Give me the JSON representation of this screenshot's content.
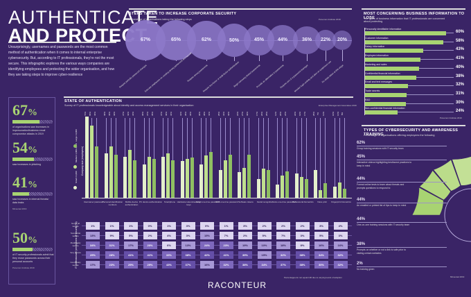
{
  "header": {
    "title_line1": "AUTHENTICATE",
    "title_line2": "AND PROTECT",
    "intro": "Unsurprisingly, usernames and passwords are the most common method of authentication when it comes to internal enterprise cybersecurity. But, according to IT professionals, they're not the most secure. This infographic explores the various ways companies are identifying employees and protecting the wider organisation, and how they are taking steps to improve cyber-resilience"
  },
  "stats": [
    {
      "value": "67",
      "unit": "%",
      "fraction": 0.67,
      "desc": "of organisations saw increases in impersonation/business email compromise attacks in 2019",
      "source": ""
    },
    {
      "value": "54",
      "unit": "%",
      "fraction": 0.54,
      "desc": "saw increases in phishing",
      "source": ""
    },
    {
      "value": "41",
      "unit": "%",
      "fraction": 0.41,
      "desc": "saw increases in internal threats/ data leaks",
      "source": "Mimecast 2019"
    },
    {
      "value": "50",
      "unit": "%",
      "fraction": 0.5,
      "desc": "of IT security professionals admit that they reuse passwords across their personal accounts",
      "source": "Ponemon Institute 2019"
    }
  ],
  "steps": {
    "title": "STEPS TAKEN TO INCREASE CORPORATE SECURITY",
    "subtitle": "Percentage of organisations taking the following steps",
    "source": "Ponemon Institute 2019",
    "items": [
      {
        "pct": "67%",
        "value": 67,
        "label": "Require periodic password changes"
      },
      {
        "pct": "65%",
        "value": 65,
        "label": "Educate employees on creating strong passwords and security"
      },
      {
        "pct": "62%",
        "value": 62,
        "label": "Require strong passwords"
      },
      {
        "pct": "50%",
        "value": 50,
        "label": "Require two-factor or multi-factor authentication"
      },
      {
        "pct": "45%",
        "value": 45,
        "label": "Begin removing shared passwords"
      },
      {
        "pct": "44%",
        "value": 44,
        "label": "Provide an alternative to passwords"
      },
      {
        "pct": "36%",
        "value": 36,
        "label": "Require use of a password manager"
      },
      {
        "pct": "22%",
        "value": 22,
        "label": "Monitor login activity and alert on suspicious use"
      },
      {
        "pct": "20%",
        "value": 20,
        "label": "No steps taken at this stage"
      }
    ]
  },
  "concerning": {
    "title": "MOST CONCERNING BUSINESS INFORMATION TO LOSE",
    "subtitle": "The types of business information that IT professionals are concerned about protecting",
    "source": "Ponemon Institute 2019",
    "items": [
      {
        "label": "Personally identifiable information",
        "pct": "60%",
        "value": 60
      },
      {
        "label": "Customer information",
        "pct": "58%",
        "value": 58
      },
      {
        "label": "Salary information",
        "pct": "43%",
        "value": 43
      },
      {
        "label": "Employee information",
        "pct": "41%",
        "value": 41
      },
      {
        "label": "Marketing and sales",
        "pct": "40%",
        "value": 40
      },
      {
        "label": "Confidential financial information",
        "pct": "38%",
        "value": 38
      },
      {
        "label": "Email and text messages",
        "pct": "32%",
        "value": 32
      },
      {
        "label": "Trade secrets",
        "pct": "31%",
        "value": 31
      },
      {
        "label": "R&D",
        "pct": "30%",
        "value": 30
      },
      {
        "label": "Non-confidential financial information",
        "pct": "24%",
        "value": 24
      }
    ]
  },
  "training": {
    "title": "TYPES OF CYBERSECURITY AND AWARENESS TRAINING",
    "subtitle": "Percentage of organisations offering employees the following",
    "source": "Mimecast 2019",
    "items": [
      {
        "pct": "62%",
        "value": 62,
        "desc": "Group training sessions with IT security team"
      },
      {
        "pct": "45%",
        "value": 45,
        "desc": "Interactive videos highlighting best/worst practices to keep in mind"
      },
      {
        "pct": "44%",
        "value": 44,
        "desc": "Formal online tests to learn about threats and prompts questions to respond to"
      },
      {
        "pct": "44%",
        "value": 44,
        "desc": "An emailed or printed list of tips to keep in mind"
      },
      {
        "pct": "44%",
        "value": 44,
        "desc": "One-on-one training sessions with IT security team"
      },
      {
        "pct": "38%",
        "value": 38,
        "desc": "Prompts on whether or not a link is safe prior to visiting certain websites"
      },
      {
        "pct": "2%",
        "value": 2,
        "desc": "No training given"
      }
    ]
  },
  "authentication": {
    "title": "STATE OF AUTHENTICATION",
    "subtitle": "Survey of IT professionals knowledgeable about identity and access management services in their organisation",
    "source": "Enterprise Management Associates 2019",
    "legend_title": "Company size (employees)",
    "legend": [
      {
        "name": "Small <1,000",
        "color": "#e4f0cc"
      },
      {
        "name": "Medium 1,000-3,000",
        "color": "#bfe08e"
      },
      {
        "name": "Large >3,000",
        "color": "#8fbf62"
      }
    ],
    "methods": [
      {
        "label": "Username/ password",
        "vals": [
          73,
          65,
          46
        ]
      },
      {
        "label": "Personal identification numbers",
        "vals": [
          40,
          46,
          39
        ]
      },
      {
        "label": "Mobile device authentication",
        "vals": [
          37,
          43,
          34
        ]
      },
      {
        "label": "PC device authentication",
        "vals": [
          30,
          37,
          35
        ]
      },
      {
        "label": "Smartphone",
        "vals": [
          37,
          40,
          34
        ]
      },
      {
        "label": "Hardware tokens/security keys",
        "vals": [
          33,
          35,
          36
        ]
      },
      {
        "label": "Email one-time password",
        "vals": [
          30,
          38,
          41
        ]
      },
      {
        "label": "SMS one-time password",
        "vals": [
          25,
          34,
          39
        ]
      },
      {
        "label": "Software tokens",
        "vals": [
          23,
          27,
          39
        ]
      },
      {
        "label": "Facial recognition",
        "vals": [
          17,
          26,
          25
        ]
      },
      {
        "label": "Voice one-time password",
        "vals": [
          12,
          20,
          24
        ]
      },
      {
        "label": "Behavioural biometrics",
        "vals": [
          22,
          19,
          17
        ]
      },
      {
        "label": "Voice print",
        "vals": [
          25,
          7,
          13
        ]
      },
      {
        "label": "Fingerprint biometrics",
        "vals": [
          10,
          14,
          8
        ]
      }
    ],
    "table_title": "IT professionals' perceptions of security (%)",
    "rows": [
      "Not at all secure",
      "Somewhat secure",
      "Moderately secure",
      "Very secure",
      "Completely secure"
    ],
    "table": [
      [
        "1%",
        "1%",
        "1%",
        "0%",
        "1%",
        "3%",
        "0%",
        "1%",
        "3%",
        "2%",
        "2%",
        "2%",
        "3%",
        "4%"
      ],
      [
        "13%",
        "9%",
        "5%",
        "2%",
        "4%",
        "3%",
        "15%",
        "7%",
        "2%",
        "5%",
        "7%",
        "3%",
        "5%",
        "3%"
      ],
      [
        "34%",
        "31%",
        "17%",
        "20%",
        "6%",
        "13%",
        "24%",
        "23%",
        "19%",
        "10%",
        "18%",
        "8%",
        "16%",
        "16%"
      ],
      [
        "29%",
        "28%",
        "41%",
        "41%",
        "33%",
        "38%",
        "42%",
        "41%",
        "39%",
        "15%",
        "32%",
        "38%",
        "34%",
        "32%"
      ],
      [
        "17%",
        "23%",
        "29%",
        "29%",
        "43%",
        "37%",
        "16%",
        "32%",
        "38%",
        "34%",
        "37%",
        "38%",
        "30%",
        "32%"
      ]
    ],
    "table_note": "Percentages do not equal 100 due to varying levels of adoption"
  },
  "footer": {
    "brand": "RACONTEUR"
  }
}
